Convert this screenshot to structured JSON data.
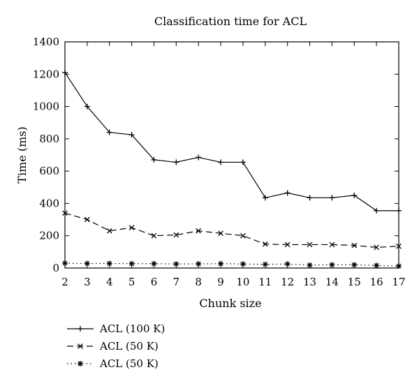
{
  "chart_data": {
    "type": "line",
    "title": "Classification time for ACL",
    "xlabel": "Chunk size",
    "ylabel": "Time (ms)",
    "x": [
      2,
      3,
      4,
      5,
      6,
      7,
      8,
      9,
      10,
      11,
      12,
      13,
      14,
      15,
      16,
      17
    ],
    "xlim": [
      2,
      17
    ],
    "ylim": [
      0,
      1400
    ],
    "yticks": [
      0,
      200,
      400,
      600,
      800,
      1000,
      1200,
      1400
    ],
    "grid": false,
    "legend_position": "bottom-left",
    "series": [
      {
        "name": "ACL (100 K)",
        "line": "solid",
        "marker": "plus",
        "values": [
          1210,
          1000,
          840,
          825,
          670,
          655,
          685,
          655,
          655,
          435,
          465,
          435,
          435,
          450,
          355,
          355
        ]
      },
      {
        "name": "ACL (50 K)",
        "line": "dashed",
        "marker": "cross",
        "values": [
          340,
          300,
          230,
          250,
          200,
          205,
          230,
          215,
          200,
          148,
          145,
          145,
          145,
          140,
          128,
          135
        ]
      },
      {
        "name": "ACL (50 K)",
        "line": "dotted",
        "marker": "asterisk",
        "values": [
          30,
          28,
          28,
          27,
          27,
          25,
          26,
          27,
          25,
          23,
          25,
          18,
          20,
          20,
          16,
          12
        ]
      }
    ]
  }
}
